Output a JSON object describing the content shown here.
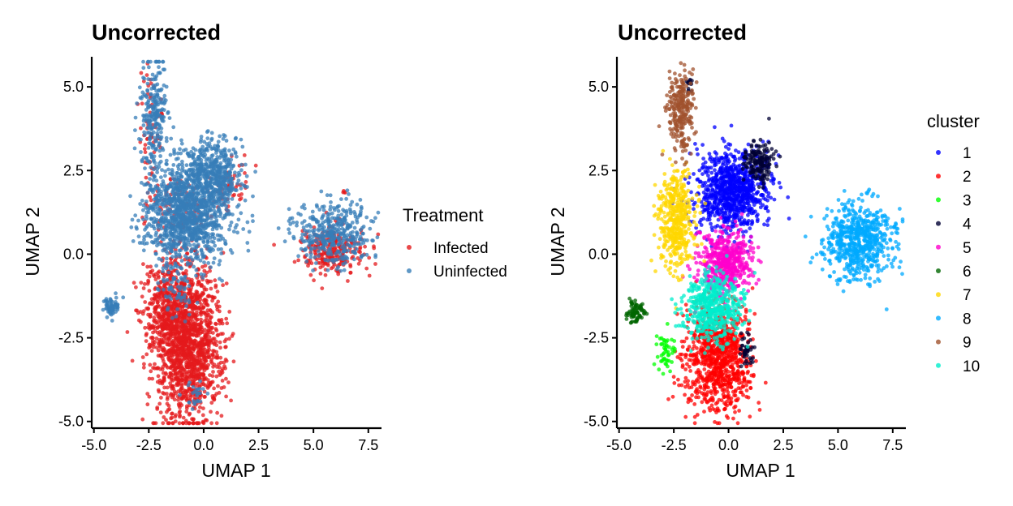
{
  "chart_data": [
    {
      "type": "scatter",
      "title": "Uncorrected",
      "xlabel": "UMAP 1",
      "ylabel": "UMAP 2",
      "xlim": [
        -5.1,
        8.1
      ],
      "ylim": [
        -5.2,
        5.9
      ],
      "xticks": [
        -5.0,
        -2.5,
        0.0,
        2.5,
        5.0,
        7.5
      ],
      "xtick_labels": [
        "-5.0",
        "-2.5",
        "0.0",
        "2.5",
        "5.0",
        "7.5"
      ],
      "yticks": [
        -5.0,
        -2.5,
        0.0,
        2.5,
        5.0
      ],
      "ytick_labels": [
        "-5.0",
        "-2.5",
        "0.0",
        "2.5",
        "5.0"
      ],
      "legend_title": "Treatment",
      "legend_position": "right",
      "series": [
        {
          "name": "Infected",
          "color": "#E41A1C",
          "regions": [
            {
              "cx": -0.7,
              "cy": -2.7,
              "sx": 0.8,
              "sy": 1.1,
              "n": 1400
            },
            {
              "cx": -1.6,
              "cy": -1.5,
              "sx": 0.6,
              "sy": 0.7,
              "n": 350
            },
            {
              "cx": 5.8,
              "cy": 0.1,
              "sx": 0.7,
              "sy": 0.35,
              "n": 260
            },
            {
              "cx": -2.4,
              "cy": 3.8,
              "sx": 0.3,
              "sy": 0.8,
              "n": 60
            },
            {
              "cx": -1.2,
              "cy": 1.2,
              "sx": 0.7,
              "sy": 0.6,
              "n": 90
            },
            {
              "cx": 1.2,
              "cy": 2.0,
              "sx": 0.5,
              "sy": 0.4,
              "n": 60
            },
            {
              "cx": 6.4,
              "cy": 1.85,
              "sx": 0.03,
              "sy": 0.03,
              "n": 4
            }
          ]
        },
        {
          "name": "Uninfected",
          "color": "#377EB8",
          "regions": [
            {
              "cx": -0.7,
              "cy": 1.3,
              "sx": 1.0,
              "sy": 0.8,
              "n": 1300
            },
            {
              "cx": 0.5,
              "cy": 2.4,
              "sx": 0.7,
              "sy": 0.45,
              "n": 350
            },
            {
              "cx": -2.3,
              "cy": 4.2,
              "sx": 0.3,
              "sy": 0.8,
              "n": 230
            },
            {
              "cx": 5.9,
              "cy": 0.6,
              "sx": 0.8,
              "sy": 0.5,
              "n": 380
            },
            {
              "cx": -4.2,
              "cy": -1.6,
              "sx": 0.18,
              "sy": 0.15,
              "n": 70
            },
            {
              "cx": -1.2,
              "cy": -1.0,
              "sx": 0.4,
              "sy": 0.4,
              "n": 60
            },
            {
              "cx": -0.4,
              "cy": -4.2,
              "sx": 0.3,
              "sy": 0.2,
              "n": 25
            }
          ]
        }
      ]
    },
    {
      "type": "scatter",
      "title": "Uncorrected",
      "xlabel": "UMAP 1",
      "ylabel": "UMAP 2",
      "xlim": [
        -5.1,
        8.1
      ],
      "ylim": [
        -5.2,
        5.9
      ],
      "xticks": [
        -5.0,
        -2.5,
        0.0,
        2.5,
        5.0,
        7.5
      ],
      "xtick_labels": [
        "-5.0",
        "-2.5",
        "0.0",
        "2.5",
        "5.0",
        "7.5"
      ],
      "yticks": [
        -5.0,
        -2.5,
        0.0,
        2.5,
        5.0
      ],
      "ytick_labels": [
        "-5.0",
        "-2.5",
        "0.0",
        "2.5",
        "5.0"
      ],
      "legend_title": "cluster",
      "legend_position": "right",
      "series": [
        {
          "name": "1",
          "color": "#0000FF",
          "regions": [
            {
              "cx": 0.2,
              "cy": 1.9,
              "sx": 0.8,
              "sy": 0.6,
              "n": 900
            }
          ]
        },
        {
          "name": "2",
          "color": "#FF0000",
          "regions": [
            {
              "cx": -0.5,
              "cy": -3.1,
              "sx": 0.75,
              "sy": 0.8,
              "n": 900
            }
          ]
        },
        {
          "name": "3",
          "color": "#00FF00",
          "regions": [
            {
              "cx": -2.9,
              "cy": -2.9,
              "sx": 0.2,
              "sy": 0.3,
              "n": 50
            }
          ]
        },
        {
          "name": "4",
          "color": "#000033",
          "regions": [
            {
              "cx": 1.4,
              "cy": 2.8,
              "sx": 0.35,
              "sy": 0.3,
              "n": 160
            },
            {
              "cx": 0.8,
              "cy": -2.9,
              "sx": 0.15,
              "sy": 0.3,
              "n": 40
            },
            {
              "cx": -1.8,
              "cy": 5.1,
              "sx": 0.1,
              "sy": 0.1,
              "n": 15
            }
          ]
        },
        {
          "name": "5",
          "color": "#FF00CC",
          "regions": [
            {
              "cx": -0.2,
              "cy": -0.2,
              "sx": 0.6,
              "sy": 0.45,
              "n": 500
            }
          ]
        },
        {
          "name": "6",
          "color": "#006600",
          "regions": [
            {
              "cx": -4.2,
              "cy": -1.7,
              "sx": 0.2,
              "sy": 0.18,
              "n": 80
            }
          ]
        },
        {
          "name": "7",
          "color": "#FFD700",
          "regions": [
            {
              "cx": -2.4,
              "cy": 1.0,
              "sx": 0.4,
              "sy": 0.8,
              "n": 450
            }
          ]
        },
        {
          "name": "8",
          "color": "#00AAFF",
          "regions": [
            {
              "cx": 5.9,
              "cy": 0.4,
              "sx": 0.8,
              "sy": 0.55,
              "n": 650
            },
            {
              "cx": 6.4,
              "cy": 1.85,
              "sx": 0.03,
              "sy": 0.03,
              "n": 4
            }
          ]
        },
        {
          "name": "9",
          "color": "#A0522D",
          "regions": [
            {
              "cx": -2.2,
              "cy": 4.3,
              "sx": 0.3,
              "sy": 0.6,
              "n": 260
            }
          ]
        },
        {
          "name": "10",
          "color": "#00EECC",
          "regions": [
            {
              "cx": -0.7,
              "cy": -1.6,
              "sx": 0.65,
              "sy": 0.5,
              "n": 500
            }
          ]
        }
      ]
    }
  ]
}
